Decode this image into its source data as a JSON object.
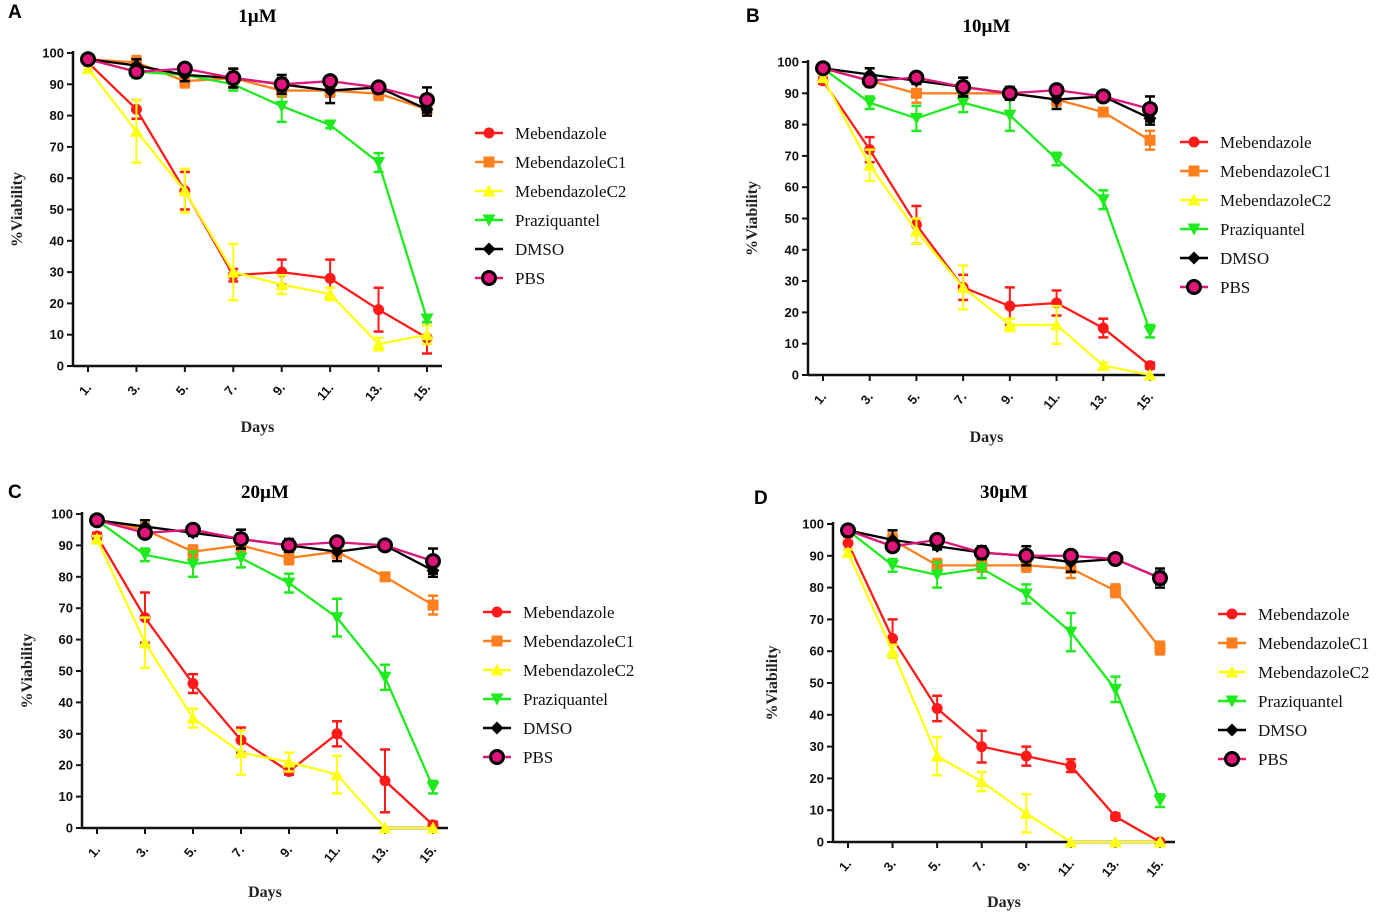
{
  "figure": {
    "series_styles": [
      {
        "name": "Mebendazole",
        "color": "#ff1a1a",
        "marker": "circle"
      },
      {
        "name": "MebendazoleC1",
        "color": "#ff7f1e",
        "marker": "square"
      },
      {
        "name": "MebendazoleC2",
        "color": "#ffff14",
        "marker": "triangle-up"
      },
      {
        "name": "Praziquantel",
        "color": "#1eea1e",
        "marker": "triangle-down"
      },
      {
        "name": "DMSO",
        "color": "#000000",
        "marker": "diamond"
      },
      {
        "name": "PBS",
        "color": "#e0157a",
        "marker": "ring"
      }
    ]
  },
  "chart_data": [
    {
      "panel": "A",
      "type": "line",
      "title": "1µM",
      "xlabel": "Days",
      "ylabel": "%Viability",
      "categories": [
        "1.",
        "3.",
        "5.",
        "7.",
        "9.",
        "11.",
        "13.",
        "15."
      ],
      "yticks": [
        "0",
        "10",
        "20",
        "30",
        "40",
        "50",
        "60",
        "70",
        "80",
        "90",
        "100"
      ],
      "ylim": [
        0,
        100
      ],
      "legend": "right",
      "series": [
        {
          "name": "Mebendazole",
          "values": [
            97,
            82,
            56,
            29,
            30,
            28,
            18,
            9
          ],
          "errors": [
            1,
            3,
            6,
            2,
            4,
            6,
            7,
            5
          ]
        },
        {
          "name": "MebendazoleC1",
          "values": [
            98,
            97,
            91,
            92,
            88,
            88,
            87,
            82
          ],
          "errors": [
            1,
            2,
            2,
            2,
            2,
            2,
            2,
            2
          ]
        },
        {
          "name": "MebendazoleC2",
          "values": [
            95,
            75,
            56,
            30,
            26,
            23,
            7,
            10
          ],
          "errors": [
            1,
            10,
            7,
            9,
            3,
            2,
            2,
            3
          ]
        },
        {
          "name": "Praziquantel",
          "values": [
            98,
            94,
            93,
            90,
            83,
            77,
            65,
            15
          ],
          "errors": [
            1,
            2,
            2,
            2,
            5,
            1,
            3,
            1
          ]
        },
        {
          "name": "DMSO",
          "values": [
            98,
            96,
            93,
            92,
            90,
            88,
            89,
            82
          ],
          "errors": [
            1,
            2,
            2,
            3,
            3,
            4,
            1,
            2
          ]
        },
        {
          "name": "PBS",
          "values": [
            98,
            94,
            95,
            92,
            90,
            91,
            89,
            85
          ],
          "errors": [
            1,
            1,
            1,
            3,
            2,
            1,
            1,
            4
          ]
        }
      ]
    },
    {
      "panel": "B",
      "type": "line",
      "title": "10µM",
      "xlabel": "Days",
      "ylabel": "%Viability",
      "categories": [
        "1.",
        "3.",
        "5.",
        "7.",
        "9.",
        "11.",
        "13.",
        "15."
      ],
      "yticks": [
        "0",
        "10",
        "20",
        "30",
        "40",
        "50",
        "60",
        "70",
        "80",
        "90",
        "100"
      ],
      "ylim": [
        0,
        100
      ],
      "legend": "right",
      "series": [
        {
          "name": "Mebendazole",
          "values": [
            94,
            72,
            48,
            28,
            22,
            23,
            15,
            3
          ],
          "errors": [
            1,
            4,
            6,
            4,
            6,
            4,
            3,
            1
          ]
        },
        {
          "name": "MebendazoleC1",
          "values": [
            98,
            94,
            90,
            90,
            90,
            88,
            84,
            75
          ],
          "errors": [
            1,
            2,
            3,
            2,
            2,
            2,
            1,
            3
          ]
        },
        {
          "name": "MebendazoleC2",
          "values": [
            95,
            67,
            46,
            28,
            16,
            16,
            3,
            0
          ],
          "errors": [
            1,
            5,
            4,
            7,
            2,
            6,
            1,
            0
          ]
        },
        {
          "name": "Praziquantel",
          "values": [
            98,
            87,
            82,
            87,
            83,
            69,
            56,
            14
          ],
          "errors": [
            1,
            2,
            4,
            3,
            5,
            2,
            3,
            2
          ]
        },
        {
          "name": "DMSO",
          "values": [
            98,
            96,
            94,
            92,
            90,
            88,
            89,
            82
          ],
          "errors": [
            1,
            2,
            1,
            3,
            2,
            3,
            1,
            2
          ]
        },
        {
          "name": "PBS",
          "values": [
            98,
            94,
            95,
            92,
            90,
            91,
            89,
            85
          ],
          "errors": [
            1,
            1,
            1,
            3,
            2,
            1,
            1,
            4
          ]
        }
      ]
    },
    {
      "panel": "C",
      "type": "line",
      "title": "20µM",
      "xlabel": "Days",
      "ylabel": "%Viability",
      "categories": [
        "1.",
        "3.",
        "5.",
        "7.",
        "9.",
        "11.",
        "13.",
        "15."
      ],
      "yticks": [
        "0",
        "10",
        "20",
        "30",
        "40",
        "50",
        "60",
        "70",
        "80",
        "90",
        "100"
      ],
      "ylim": [
        0,
        100
      ],
      "legend": "right",
      "series": [
        {
          "name": "Mebendazole",
          "values": [
            93,
            67,
            46,
            28,
            18,
            30,
            15,
            1
          ],
          "errors": [
            1,
            8,
            3,
            4,
            1,
            4,
            10,
            1
          ]
        },
        {
          "name": "MebendazoleC1",
          "values": [
            98,
            95,
            88,
            90,
            86,
            88,
            80,
            71
          ],
          "errors": [
            1,
            2,
            2,
            2,
            2,
            2,
            1,
            3
          ]
        },
        {
          "name": "MebendazoleC2",
          "values": [
            92,
            59,
            35,
            24,
            21,
            17,
            0,
            0
          ],
          "errors": [
            1,
            8,
            3,
            7,
            3,
            6,
            0,
            0
          ]
        },
        {
          "name": "Praziquantel",
          "values": [
            98,
            87,
            84,
            86,
            78,
            67,
            48,
            13
          ],
          "errors": [
            1,
            2,
            4,
            3,
            3,
            6,
            4,
            2
          ]
        },
        {
          "name": "DMSO",
          "values": [
            98,
            96,
            94,
            92,
            90,
            88,
            90,
            82
          ],
          "errors": [
            1,
            2,
            1,
            3,
            2,
            3,
            1,
            2
          ]
        },
        {
          "name": "PBS",
          "values": [
            98,
            94,
            95,
            92,
            90,
            91,
            90,
            85
          ],
          "errors": [
            1,
            1,
            1,
            3,
            2,
            1,
            1,
            4
          ]
        }
      ]
    },
    {
      "panel": "D",
      "type": "line",
      "title": "30µM",
      "xlabel": "Days",
      "ylabel": "%Viability",
      "categories": [
        "1.",
        "3.",
        "5.",
        "7.",
        "9.",
        "11.",
        "13.",
        "15."
      ],
      "yticks": [
        "0",
        "10",
        "20",
        "30",
        "40",
        "50",
        "60",
        "70",
        "80",
        "90",
        "100"
      ],
      "ylim": [
        0,
        100
      ],
      "legend": "right",
      "series": [
        {
          "name": "Mebendazole",
          "values": [
            94,
            64,
            42,
            30,
            27,
            24,
            8,
            0
          ],
          "errors": [
            2,
            6,
            4,
            5,
            3,
            2,
            1,
            0
          ]
        },
        {
          "name": "MebendazoleC1",
          "values": [
            98,
            95,
            87,
            87,
            87,
            86,
            79,
            61
          ],
          "errors": [
            1,
            2,
            2,
            2,
            2,
            3,
            2,
            2
          ]
        },
        {
          "name": "MebendazoleC2",
          "values": [
            91,
            60,
            27,
            19,
            9,
            0,
            0,
            0
          ],
          "errors": [
            1,
            2,
            6,
            3,
            6,
            0,
            0,
            0
          ]
        },
        {
          "name": "Praziquantel",
          "values": [
            98,
            87,
            84,
            86,
            78,
            66,
            48,
            13
          ],
          "errors": [
            1,
            2,
            4,
            3,
            3,
            6,
            4,
            2
          ]
        },
        {
          "name": "DMSO",
          "values": [
            98,
            95,
            93,
            91,
            90,
            88,
            89,
            83
          ],
          "errors": [
            1,
            3,
            1,
            2,
            3,
            3,
            1,
            2
          ]
        },
        {
          "name": "PBS",
          "values": [
            98,
            93,
            95,
            91,
            90,
            90,
            89,
            83
          ],
          "errors": [
            1,
            1,
            1,
            1,
            1,
            1,
            1,
            3
          ]
        }
      ]
    }
  ]
}
